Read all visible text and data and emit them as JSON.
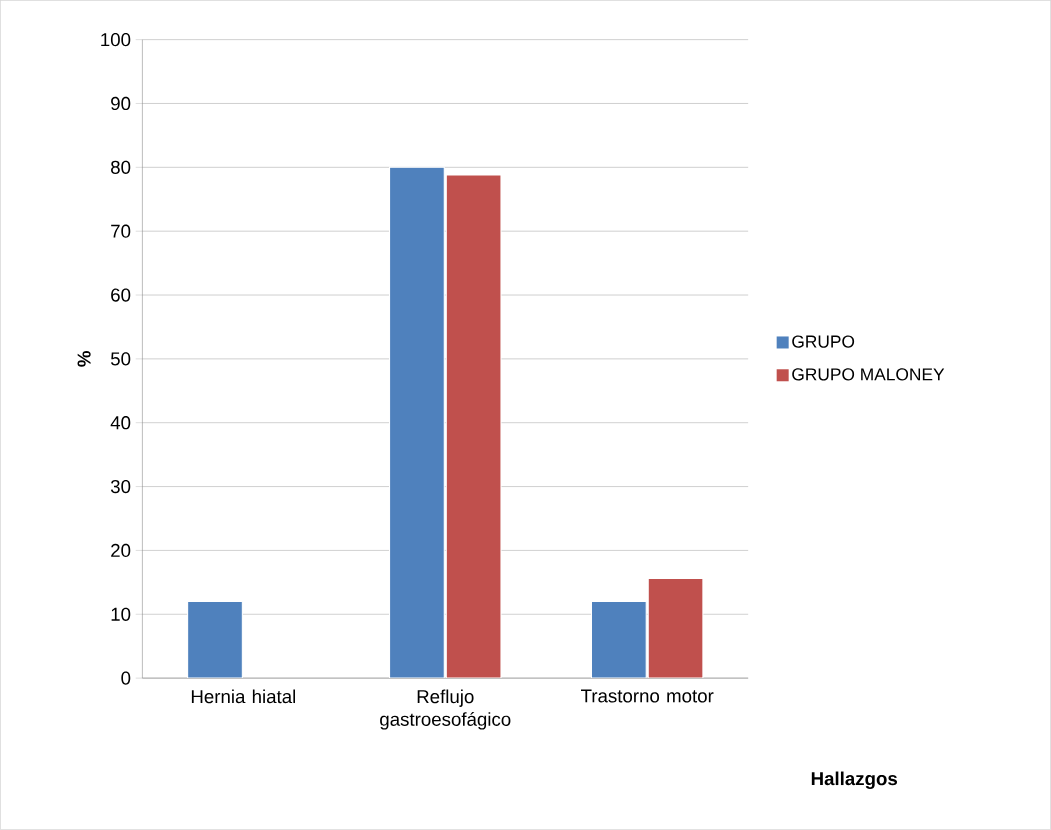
{
  "chart_data": {
    "type": "bar",
    "ylabel": "%",
    "xlabel": "Hallazgos",
    "categories": [
      "Hernia hiatal",
      "Reflujo gastroesofágico",
      "Trastorno motor"
    ],
    "series": [
      {
        "name": "GRUPO",
        "color": "#4f81bd",
        "values": [
          12,
          80,
          12
        ]
      },
      {
        "name": "GRUPO MALONEY",
        "color": "#c0504d",
        "values": [
          null,
          78.8,
          15.6
        ]
      }
    ],
    "ylim": [
      0,
      100
    ],
    "yticks": [
      0,
      10,
      20,
      30,
      40,
      50,
      60,
      70,
      80,
      90,
      100
    ],
    "grid": "y",
    "legend": "right"
  }
}
